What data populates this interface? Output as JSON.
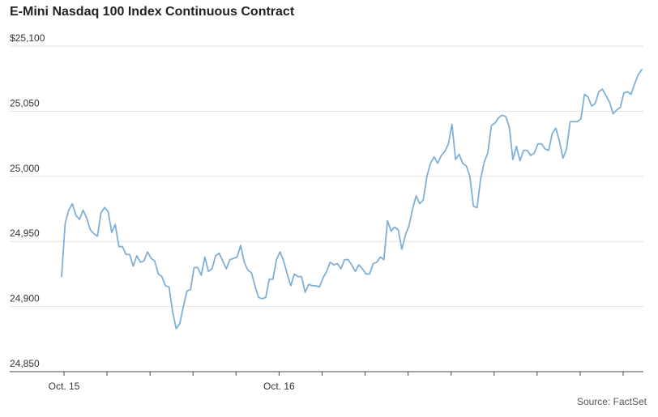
{
  "chart_data": {
    "type": "line",
    "title": "E-Mini Nasdaq 100 Index Continuous Contract",
    "source": "Source: FactSet",
    "xlabel": "",
    "ylabel": "",
    "ylim": [
      24850,
      25100
    ],
    "yticks": [
      {
        "value": 25100,
        "label": "$25,100"
      },
      {
        "value": 25050,
        "label": "25,050"
      },
      {
        "value": 25000,
        "label": "25,000"
      },
      {
        "value": 24950,
        "label": "24,950"
      },
      {
        "value": 24900,
        "label": "24,900"
      },
      {
        "value": 24850,
        "label": "24,850"
      }
    ],
    "x_tick_labels": [
      {
        "index": 0,
        "label": "Oct. 15"
      },
      {
        "index": 5,
        "label": "Oct. 16"
      }
    ],
    "x_tick_marks": 14,
    "grid": true,
    "line_color": "#7fb0d8",
    "series": [
      {
        "values": [
          24923,
          24964,
          24974,
          24979,
          24970,
          24967,
          24974,
          24968,
          24959,
          24956,
          24954,
          24972,
          24976,
          24973,
          24957,
          24963,
          24946,
          24946,
          24940,
          24940,
          24931,
          24939,
          24934,
          24935,
          24942,
          24937,
          24935,
          24925,
          24923,
          24916,
          24915,
          24896,
          24883,
          24887,
          24900,
          24912,
          24913,
          24930,
          24930,
          24924,
          24938,
          24927,
          24929,
          24939,
          24941,
          24935,
          24929,
          24936,
          24937,
          24938,
          24947,
          24934,
          24928,
          24926,
          24916,
          24907,
          24906,
          24907,
          24921,
          24921,
          24936,
          24942,
          24935,
          24925,
          24916,
          24925,
          24923,
          24923,
          24911,
          24917,
          24916,
          24916,
          24915,
          24922,
          24927,
          24934,
          24932,
          24933,
          24929,
          24936,
          24936,
          24932,
          24927,
          24932,
          24929,
          24925,
          24925,
          24933,
          24934,
          24938,
          24936,
          24966,
          24958,
          24961,
          24959,
          24944,
          24955,
          24962,
          24975,
          24985,
          24979,
          24982,
          25000,
          25010,
          25015,
          25010,
          25016,
          25019,
          25025,
          25040,
          25013,
          25017,
          25010,
          25008,
          25000,
          24977,
          24976,
          24998,
          25011,
          25018,
          25039,
          25041,
          25045,
          25047,
          25046,
          25038,
          25013,
          25023,
          25012,
          25020,
          25020,
          25016,
          25018,
          25025,
          25025,
          25021,
          25020,
          25033,
          25037,
          25027,
          25014,
          25021,
          25042,
          25042,
          25042,
          25044,
          25063,
          25061,
          25054,
          25056,
          25065,
          25067,
          25062,
          25057,
          25048,
          25051,
          25053,
          25064,
          25065,
          25063,
          25071,
          25078,
          25082
        ]
      }
    ]
  }
}
